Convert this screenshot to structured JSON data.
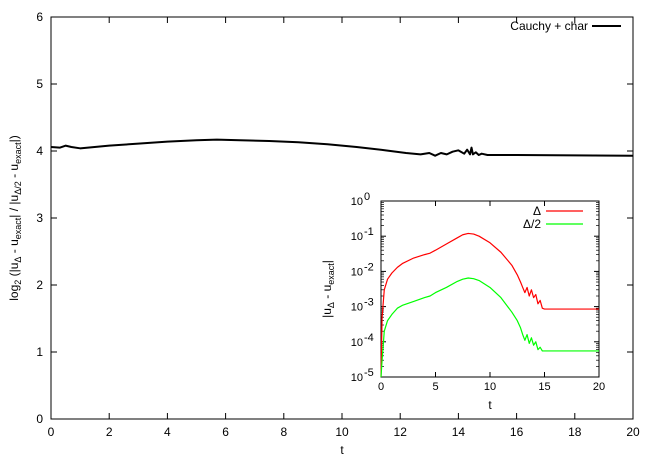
{
  "chart_data": [
    {
      "type": "line",
      "xlabel": "t",
      "ylabel": {
        "prefix": "log",
        "sub2": "2",
        "t1": " (|u",
        "sub_d": "Δ",
        "t2": " - u",
        "sub_exact": "exact",
        "t3": "| / |u",
        "sub_d2": "Δ/2",
        "t4": " - u",
        "sub_exact2": "exact",
        "t5": "|)"
      },
      "xlim": [
        0,
        20
      ],
      "ylim": [
        0,
        6
      ],
      "xticks": [
        0,
        2,
        4,
        6,
        8,
        10,
        12,
        14,
        16,
        18,
        20
      ],
      "yticks": [
        0,
        1,
        2,
        3,
        4,
        5,
        6
      ],
      "grid": false,
      "legend_position": "top-right",
      "series": [
        {
          "name": "Cauchy + char",
          "color": "#000000",
          "x": [
            0,
            0.3,
            0.5,
            0.7,
            1.0,
            1.5,
            2.0,
            3.0,
            4.0,
            5.0,
            5.7,
            6.5,
            7.5,
            8.5,
            9.5,
            10.5,
            11.5,
            12.2,
            12.7,
            13.0,
            13.2,
            13.4,
            13.6,
            13.8,
            14.0,
            14.2,
            14.3,
            14.4,
            14.45,
            14.5,
            14.6,
            14.7,
            14.8,
            15.0,
            16.0,
            18.0,
            20.0
          ],
          "y": [
            4.06,
            4.05,
            4.08,
            4.06,
            4.04,
            4.06,
            4.08,
            4.11,
            4.14,
            4.16,
            4.17,
            4.16,
            4.15,
            4.13,
            4.1,
            4.06,
            4.01,
            3.97,
            3.95,
            3.97,
            3.93,
            3.97,
            3.95,
            3.99,
            4.01,
            3.96,
            4.02,
            3.95,
            4.05,
            3.95,
            3.98,
            3.94,
            3.96,
            3.94,
            3.94,
            3.935,
            3.93
          ]
        }
      ]
    },
    {
      "type": "line",
      "xlabel": "t",
      "ylabel": {
        "t1": "|u",
        "sub_d": "Δ",
        "t2": " - u",
        "sub_exact": "exact",
        "t3": "|"
      },
      "xlim": [
        0,
        20
      ],
      "ylim": [
        1e-05,
        1
      ],
      "yscale": "log",
      "xticks": [
        0,
        5,
        10,
        15,
        20
      ],
      "yticks": [
        {
          "value": 1,
          "base": "10",
          "exp": "0"
        },
        {
          "value": 0.1,
          "base": "10",
          "exp": "-1"
        },
        {
          "value": 0.01,
          "base": "10",
          "exp": "-2"
        },
        {
          "value": 0.001,
          "base": "10",
          "exp": "-3"
        },
        {
          "value": 0.0001,
          "base": "10",
          "exp": "-4"
        },
        {
          "value": 1e-05,
          "base": "10",
          "exp": "-5"
        }
      ],
      "grid": false,
      "legend_position": "top-right",
      "series": [
        {
          "name": "Δ",
          "color": "#ff0000",
          "x": [
            0,
            0.1,
            0.3,
            0.6,
            1.0,
            1.5,
            2.0,
            3.0,
            4.0,
            4.5,
            5.0,
            6.0,
            7.0,
            7.5,
            8.0,
            8.5,
            9.0,
            10.0,
            11.0,
            12.0,
            12.5,
            12.8,
            13.0,
            13.2,
            13.4,
            13.6,
            13.8,
            14.0,
            14.2,
            14.4,
            14.6,
            14.8,
            15.0,
            16.0,
            18.0,
            20.0
          ],
          "y": [
            1e-05,
            0.0005,
            0.003,
            0.006,
            0.009,
            0.013,
            0.017,
            0.024,
            0.03,
            0.033,
            0.04,
            0.06,
            0.09,
            0.11,
            0.12,
            0.115,
            0.1,
            0.065,
            0.035,
            0.015,
            0.008,
            0.005,
            0.0035,
            0.0025,
            0.0035,
            0.002,
            0.003,
            0.0018,
            0.0022,
            0.0012,
            0.0015,
            0.0009,
            0.00085,
            0.00085,
            0.00085,
            0.00085
          ]
        },
        {
          "name": "Δ/2",
          "color": "#00ff00",
          "x": [
            0,
            0.1,
            0.3,
            0.6,
            1.0,
            1.5,
            2.0,
            3.0,
            4.0,
            4.5,
            5.0,
            6.0,
            7.0,
            7.5,
            8.0,
            8.5,
            9.0,
            10.0,
            11.0,
            12.0,
            12.5,
            12.8,
            13.0,
            13.2,
            13.4,
            13.6,
            13.8,
            14.0,
            14.2,
            14.4,
            14.6,
            14.8,
            15.0,
            16.0,
            18.0,
            20.0
          ],
          "y": [
            1e-05,
            3e-05,
            0.0002,
            0.0004,
            0.0006,
            0.0009,
            0.0011,
            0.0014,
            0.0018,
            0.002,
            0.0025,
            0.0035,
            0.0052,
            0.006,
            0.0065,
            0.0062,
            0.0055,
            0.0035,
            0.0018,
            0.0007,
            0.0004,
            0.00025,
            0.00016,
            0.00011,
            0.00016,
            9e-05,
            0.00013,
            8e-05,
            0.0001,
            6e-05,
            7e-05,
            5.5e-05,
            5.5e-05,
            5.5e-05,
            5.5e-05,
            5.5e-05
          ]
        }
      ]
    }
  ]
}
